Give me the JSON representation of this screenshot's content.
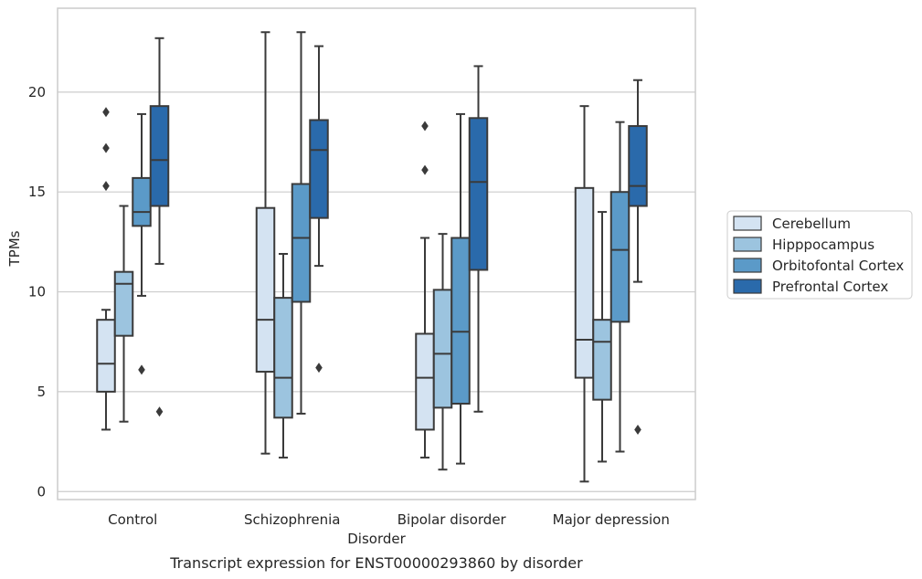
{
  "chart_data": {
    "type": "box",
    "caption": "Transcript expression for ENST00000293860 by disorder",
    "xlabel": "Disorder",
    "ylabel": "TPMs",
    "ylim": [
      -0.4,
      24.2
    ],
    "yticks": [
      0,
      5,
      10,
      15,
      20
    ],
    "grid": "y",
    "legend_position": "right",
    "categories": [
      "Control",
      "Schizophrenia",
      "Bipolar disorder",
      "Major depression"
    ],
    "series": [
      {
        "name": "Cerebellum",
        "color": "#d4e3f2",
        "boxes": [
          {
            "whislo": 3.1,
            "q1": 5.0,
            "med": 6.4,
            "q3": 8.6,
            "whishi": 9.1,
            "fliers": [
              15.3,
              17.2,
              19.0
            ]
          },
          {
            "whislo": 1.9,
            "q1": 6.0,
            "med": 8.6,
            "q3": 14.2,
            "whishi": 23.0,
            "fliers": []
          },
          {
            "whislo": 1.7,
            "q1": 3.1,
            "med": 5.7,
            "q3": 7.9,
            "whishi": 12.7,
            "fliers": [
              16.1,
              18.3
            ]
          },
          {
            "whislo": 0.5,
            "q1": 5.7,
            "med": 7.6,
            "q3": 15.2,
            "whishi": 19.3,
            "fliers": []
          }
        ]
      },
      {
        "name": "Hipppocampus",
        "color": "#9cc4df",
        "boxes": [
          {
            "whislo": 3.5,
            "q1": 7.8,
            "med": 10.4,
            "q3": 11.0,
            "whishi": 14.3,
            "fliers": []
          },
          {
            "whislo": 1.7,
            "q1": 3.7,
            "med": 5.7,
            "q3": 9.7,
            "whishi": 11.9,
            "fliers": []
          },
          {
            "whislo": 1.1,
            "q1": 4.2,
            "med": 6.9,
            "q3": 10.1,
            "whishi": 12.9,
            "fliers": []
          },
          {
            "whislo": 1.5,
            "q1": 4.6,
            "med": 7.5,
            "q3": 8.6,
            "whishi": 14.0,
            "fliers": []
          }
        ]
      },
      {
        "name": "Orbitofontal Cortex",
        "color": "#5b9ac8",
        "boxes": [
          {
            "whislo": 9.8,
            "q1": 13.3,
            "med": 14.0,
            "q3": 15.7,
            "whishi": 18.9,
            "fliers": [
              6.1
            ]
          },
          {
            "whislo": 3.9,
            "q1": 9.5,
            "med": 12.7,
            "q3": 15.4,
            "whishi": 23.0,
            "fliers": []
          },
          {
            "whislo": 1.4,
            "q1": 4.4,
            "med": 8.0,
            "q3": 12.7,
            "whishi": 18.9,
            "fliers": []
          },
          {
            "whislo": 2.0,
            "q1": 8.5,
            "med": 12.1,
            "q3": 15.0,
            "whishi": 18.5,
            "fliers": []
          }
        ]
      },
      {
        "name": "Prefrontal Cortex",
        "color": "#2a6aab",
        "boxes": [
          {
            "whislo": 11.4,
            "q1": 14.3,
            "med": 16.6,
            "q3": 19.3,
            "whishi": 22.7,
            "fliers": [
              4.0
            ]
          },
          {
            "whislo": 11.3,
            "q1": 13.7,
            "med": 17.1,
            "q3": 18.6,
            "whishi": 22.3,
            "fliers": [
              6.2
            ]
          },
          {
            "whislo": 4.0,
            "q1": 11.1,
            "med": 15.5,
            "q3": 18.7,
            "whishi": 21.3,
            "fliers": []
          },
          {
            "whislo": 10.5,
            "q1": 14.3,
            "med": 15.3,
            "q3": 18.3,
            "whishi": 20.6,
            "fliers": [
              3.1
            ]
          }
        ]
      }
    ]
  }
}
